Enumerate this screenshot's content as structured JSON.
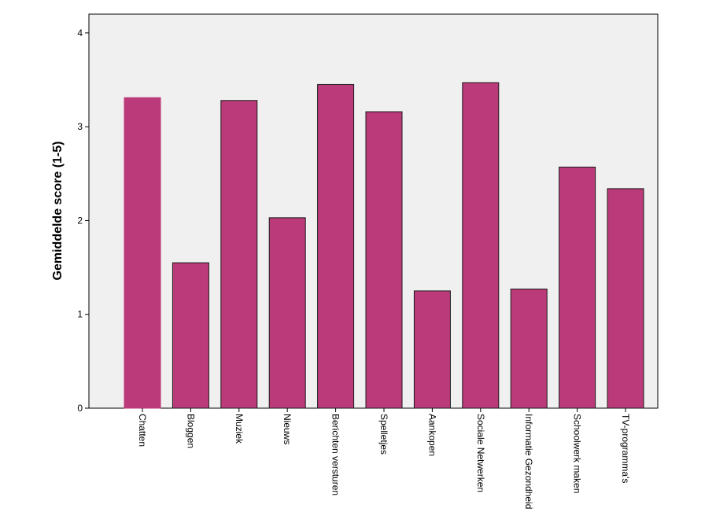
{
  "chart_data": {
    "type": "bar",
    "title": "",
    "xlabel": "",
    "ylabel": "Gemiddelde score (1-5)",
    "ylim": [
      0,
      4.2
    ],
    "yticks": [
      "0",
      "1",
      "2",
      "3",
      "4"
    ],
    "grid": false,
    "categories": [
      "Chatten",
      "Bloggen",
      "Muziek",
      "Nieuws",
      "Berichten versturen",
      "Spelletjes",
      "Aankopen",
      "Sociale Netwerken",
      "Informatie Gezondheid",
      "Schoolwerk maken",
      "TV-programma's"
    ],
    "values": [
      3.31,
      1.55,
      3.28,
      2.03,
      3.45,
      3.16,
      1.25,
      3.47,
      1.27,
      2.57,
      2.34
    ],
    "colors": {
      "bar": "#bb3b7a",
      "bar_border": "#1a1a1a",
      "plot_background": "#f0f0f0",
      "frame": "#000000"
    }
  }
}
